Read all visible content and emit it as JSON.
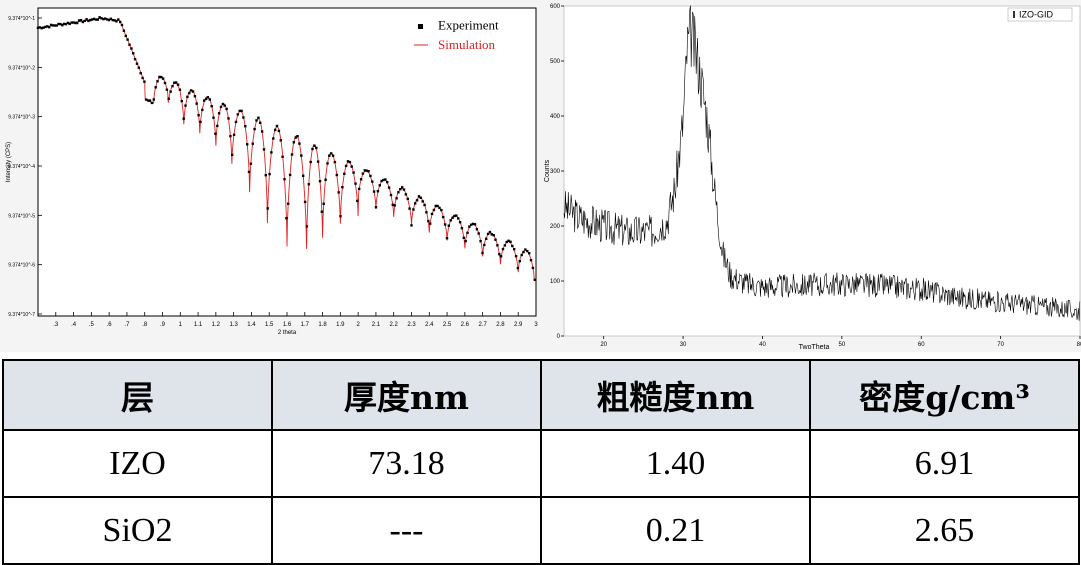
{
  "chart_data": [
    {
      "type": "scatter",
      "xlabel": "2 theta",
      "ylabel": "Intensity (CPS)",
      "xlim": [
        0.2,
        3.0
      ],
      "x_ticks": [
        ".3",
        ".4",
        ".5",
        ".6",
        ".7",
        ".8",
        ".9",
        "1",
        "1.1",
        "1.2",
        "1.3",
        "1.4",
        "1.5",
        "1.6",
        "1.7",
        "1.8",
        "1.9",
        "2",
        "2.1",
        "2.2",
        "2.3",
        "2.4",
        "2.5",
        "2.6",
        "2.7",
        "2.8",
        "2.9",
        "3"
      ],
      "y_scale": "log",
      "y_ticks": [
        "9.374*10^-7",
        "9.374*10^-6",
        "9.374*10^-5",
        "9.374*10^-4",
        "9.374*10^-3",
        "9.374*10^-2",
        "9.374*10^-1"
      ],
      "legend": {
        "position": "top-right",
        "entries": [
          "Experiment",
          "Simulation"
        ]
      },
      "series": [
        {
          "name": "Experiment",
          "style": "markers",
          "color": "#000000"
        },
        {
          "name": "Simulation",
          "style": "line",
          "color": "#e02020"
        }
      ],
      "fringe_minima_x": [
        0.85,
        0.93,
        1.02,
        1.11,
        1.2,
        1.29,
        1.39,
        1.49,
        1.6,
        1.71,
        1.8,
        1.9,
        2.0,
        2.1,
        2.2,
        2.3,
        2.4,
        2.5,
        2.6,
        2.7,
        2.8,
        2.9
      ]
    },
    {
      "type": "line",
      "xlabel": "TwoTheta",
      "ylabel": "Counts",
      "xlim": [
        15,
        80
      ],
      "ylim": [
        0,
        600
      ],
      "x_ticks": [
        20,
        30,
        40,
        50,
        60,
        70,
        80
      ],
      "y_ticks": [
        0,
        100,
        200,
        300,
        400,
        500,
        600
      ],
      "legend": {
        "position": "top-right",
        "entries": [
          "IZO-GID"
        ]
      },
      "series": [
        {
          "name": "IZO-GID",
          "color": "#000000",
          "x": [
            15,
            17,
            20,
            23,
            26,
            28,
            29,
            30,
            30.5,
            31,
            31.5,
            32,
            33,
            34,
            35,
            36,
            38,
            40,
            45,
            50,
            55,
            60,
            65,
            70,
            75,
            80
          ],
          "y": [
            235,
            215,
            200,
            190,
            190,
            210,
            270,
            390,
            520,
            550,
            520,
            490,
            400,
            260,
            150,
            110,
            95,
            90,
            92,
            95,
            92,
            85,
            70,
            62,
            55,
            45
          ]
        }
      ]
    }
  ],
  "table": {
    "headers": [
      "层",
      "厚度nm",
      "粗糙度nm",
      "密度g/cm³"
    ],
    "rows": [
      [
        "IZO",
        "73.18",
        "1.40",
        "6.91"
      ],
      [
        "SiO2",
        "---",
        "0.21",
        "2.65"
      ]
    ]
  }
}
